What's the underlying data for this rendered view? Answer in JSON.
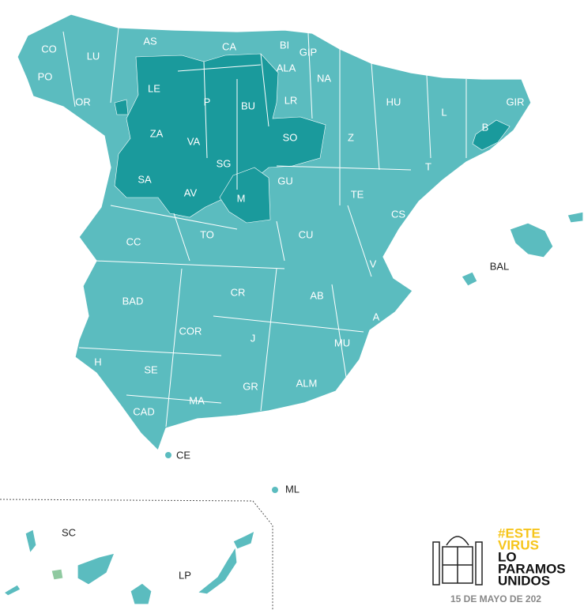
{
  "map": {
    "labels": [
      "CO",
      "LU",
      "AS",
      "CA",
      "BI",
      "GIP",
      "ALA",
      "NA",
      "PO",
      "OR",
      "LE",
      "P",
      "BU",
      "LR",
      "HU",
      "L",
      "GIR",
      "B",
      "ZA",
      "VA",
      "SO",
      "Z",
      "SG",
      "T",
      "SA",
      "AV",
      "GU",
      "TE",
      "M",
      "CS",
      "CC",
      "TO",
      "CU",
      "BAL",
      "V",
      "BAD",
      "CR",
      "AB",
      "A",
      "COR",
      "J",
      "MU",
      "H",
      "SE",
      "GR",
      "ALM",
      "MA",
      "CAD",
      "CE",
      "ML",
      "SC",
      "LP"
    ]
  },
  "logo": {
    "lines": [
      "#ESTE",
      "VIRUS",
      "LO",
      "PARAMOS",
      "UNIDOS"
    ]
  },
  "date": "15 DE MAYO DE 202"
}
